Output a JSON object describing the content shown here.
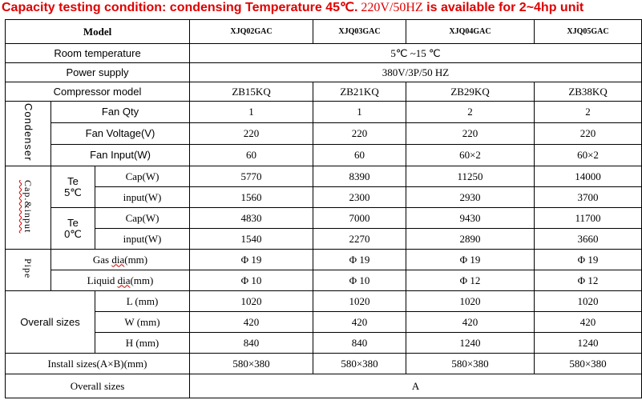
{
  "title": {
    "part1": "Capacity testing condition: condensing Temperature 45℃.",
    "part2": " 220V/50HZ",
    "part3": " is available for    2~4hp unit"
  },
  "header": {
    "model_label": "Model",
    "models": [
      "XJQ02GAC",
      "XJQ03GAC",
      "XJQ04GAC",
      "XJQ05GAC"
    ]
  },
  "room_temperature": {
    "label": "Room temperature",
    "value": "5℃ ~15 ℃"
  },
  "power_supply": {
    "label": "Power supply",
    "value": "380V/3P/50 HZ"
  },
  "compressor_model": {
    "label": "Compressor model",
    "values": [
      "ZB15KQ",
      "ZB21KQ",
      "ZB29KQ",
      "ZB38KQ"
    ]
  },
  "condenser": {
    "group_label": "Condenser",
    "fan_qty": {
      "label": "Fan Qty",
      "values": [
        "1",
        "1",
        "2",
        "2"
      ]
    },
    "fan_voltage": {
      "label": "Fan Voltage(V)",
      "values": [
        "220",
        "220",
        "220",
        "220"
      ]
    },
    "fan_input": {
      "label": "Fan Input(W)",
      "values": [
        "60",
        "60",
        "60×2",
        "60×2"
      ]
    }
  },
  "capacity": {
    "group_label": "Cap.&input",
    "te5": {
      "label_line1": "Te",
      "label_line2": "5℃",
      "cap": {
        "label": "Cap(W)",
        "values": [
          "5770",
          "8390",
          "11250",
          "14000"
        ]
      },
      "input": {
        "label": "input(W)",
        "values": [
          "1560",
          "2300",
          "2930",
          "3700"
        ]
      }
    },
    "te0": {
      "label_line1": "Te",
      "label_line2": "0℃",
      "cap": {
        "label": "Cap(W)",
        "values": [
          "4830",
          "7000",
          "9430",
          "11700"
        ]
      },
      "input": {
        "label": "input(W)",
        "values": [
          "1540",
          "2270",
          "2890",
          "3660"
        ]
      }
    }
  },
  "pipe": {
    "group_label": "Pipe",
    "gas": {
      "label_pre": "Gas ",
      "label_squig": "dia",
      "label_post": "(mm)",
      "values": [
        "Φ 19",
        "Φ 19",
        "Φ 19",
        "Φ 19"
      ]
    },
    "liquid": {
      "label_pre": "Liquid ",
      "label_squig": "dia",
      "label_post": "(mm)",
      "values": [
        "Φ 10",
        "Φ 10",
        "Φ 12",
        "Φ 12"
      ]
    }
  },
  "overall_sizes": {
    "group_label": "Overall sizes",
    "L": {
      "label": "L (mm)",
      "values": [
        "1020",
        "1020",
        "1020",
        "1020"
      ]
    },
    "W": {
      "label": "W (mm)",
      "values": [
        "420",
        "420",
        "420",
        "420"
      ]
    },
    "H": {
      "label": "H (mm)",
      "values": [
        "840",
        "840",
        "1240",
        "1240"
      ]
    }
  },
  "install_sizes": {
    "label": "Install sizes(A×B)(mm)",
    "values": [
      "580×380",
      "580×380",
      "580×380",
      "580×380"
    ]
  },
  "overall_sizes_footer": {
    "label": "Overall sizes",
    "value": "A"
  }
}
